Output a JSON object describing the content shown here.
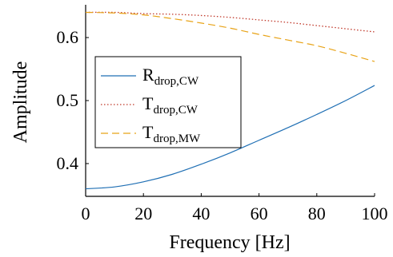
{
  "chart_data": {
    "type": "line",
    "title": "",
    "xlabel": "Frequency [Hz]",
    "ylabel": "Amplitude",
    "xlim": [
      0,
      100
    ],
    "ylim": [
      0.348,
      0.652
    ],
    "xticks": [
      0,
      20,
      40,
      60,
      80,
      100
    ],
    "yticks": [
      0.4,
      0.5,
      0.6
    ],
    "xtick_labels": [
      "0",
      "20",
      "40",
      "60",
      "80",
      "100"
    ],
    "ytick_labels": [
      "0.4",
      "0.5",
      "0.6"
    ],
    "grid": false,
    "legend_placement": "center-left",
    "x": [
      0,
      10,
      20,
      30,
      40,
      50,
      60,
      70,
      80,
      90,
      100
    ],
    "series": [
      {
        "name": "R",
        "subscript": "drop,CW",
        "style": "solid",
        "color": "#1f6fb4",
        "values": [
          0.36,
          0.363,
          0.371,
          0.383,
          0.399,
          0.417,
          0.437,
          0.457,
          0.478,
          0.5,
          0.524
        ]
      },
      {
        "name": "T",
        "subscript": "drop,CW",
        "style": "dotted",
        "color": "#c0392b",
        "values": [
          0.64,
          0.64,
          0.638,
          0.637,
          0.635,
          0.632,
          0.628,
          0.624,
          0.619,
          0.614,
          0.609
        ]
      },
      {
        "name": "T",
        "subscript": "drop,MW",
        "style": "dashed",
        "color": "#e8a317",
        "values": [
          0.64,
          0.639,
          0.636,
          0.63,
          0.623,
          0.615,
          0.605,
          0.596,
          0.587,
          0.575,
          0.562
        ]
      }
    ]
  }
}
